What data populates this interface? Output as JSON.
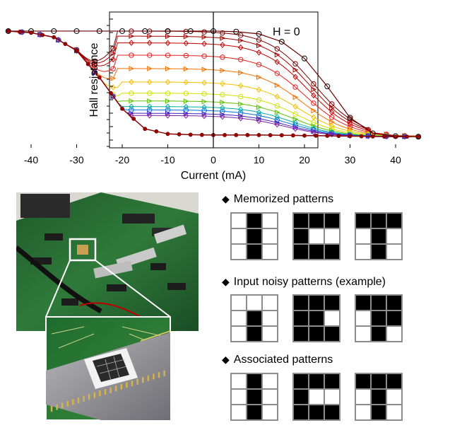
{
  "chart_data": {
    "type": "line",
    "annotation": "H = 0",
    "xlabel": "Current (mA)",
    "ylabel": "Hall resistance",
    "xlim": [
      -48,
      48
    ],
    "ylim": [
      0,
      1
    ],
    "x_ticks": [
      -40,
      -30,
      -20,
      -10,
      0,
      10,
      20,
      30,
      40
    ],
    "x_tick_labels": [
      "-40",
      "-30",
      "-20",
      "-10",
      "0",
      "10",
      "20",
      "30",
      "40"
    ],
    "y_ticks_labeled": false,
    "grid": false,
    "legend": "none",
    "x": [
      -45,
      -40,
      -35,
      -30,
      -25,
      -20,
      -15,
      -10,
      -5,
      0,
      5,
      10,
      15,
      20,
      25,
      30,
      35,
      40,
      45
    ],
    "upper_branch": [
      0.975,
      0.975,
      0.975,
      0.975,
      0.975,
      0.975,
      0.975,
      0.975,
      0.975,
      0.975,
      0.97,
      0.95,
      0.88,
      0.73,
      0.48,
      0.2,
      0.06,
      0.035,
      0.03
    ],
    "lower_branch": [
      0.975,
      0.96,
      0.92,
      0.8,
      0.56,
      0.28,
      0.1,
      0.055,
      0.048,
      0.045,
      0.045,
      0.045,
      0.043,
      0.04,
      0.038,
      0.035,
      0.032,
      0.03,
      0.03
    ],
    "minor_loop_plateaus": [
      0.975,
      0.93,
      0.87,
      0.76,
      0.64,
      0.52,
      0.42,
      0.35,
      0.3,
      0.27,
      0.24,
      0.22
    ],
    "series_colors": [
      "#7a0000",
      "#a00000",
      "#c00000",
      "#e02020",
      "#f07000",
      "#f0c000",
      "#d0e000",
      "#60c000",
      "#00b0a0",
      "#0070e0",
      "#4020c0",
      "#8020a0"
    ]
  },
  "patterns": {
    "memorized": {
      "label": "Memorized patterns",
      "grids": [
        [
          0,
          1,
          0,
          0,
          1,
          0,
          0,
          1,
          0
        ],
        [
          1,
          1,
          1,
          1,
          0,
          0,
          1,
          1,
          1
        ],
        [
          1,
          1,
          1,
          0,
          1,
          0,
          0,
          1,
          0
        ]
      ]
    },
    "input": {
      "label": "Input noisy patterns (example)",
      "grids": [
        [
          0,
          0,
          0,
          0,
          1,
          0,
          0,
          1,
          0
        ],
        [
          1,
          1,
          1,
          1,
          1,
          0,
          1,
          1,
          1
        ],
        [
          1,
          1,
          1,
          0,
          1,
          1,
          0,
          1,
          0
        ]
      ]
    },
    "associated": {
      "label": "Associated patterns",
      "grids": [
        [
          0,
          1,
          0,
          0,
          1,
          0,
          0,
          1,
          0
        ],
        [
          1,
          1,
          1,
          1,
          0,
          0,
          1,
          1,
          1
        ],
        [
          1,
          1,
          1,
          0,
          1,
          0,
          0,
          1,
          0
        ]
      ]
    }
  },
  "bullet_glyph": "◆"
}
